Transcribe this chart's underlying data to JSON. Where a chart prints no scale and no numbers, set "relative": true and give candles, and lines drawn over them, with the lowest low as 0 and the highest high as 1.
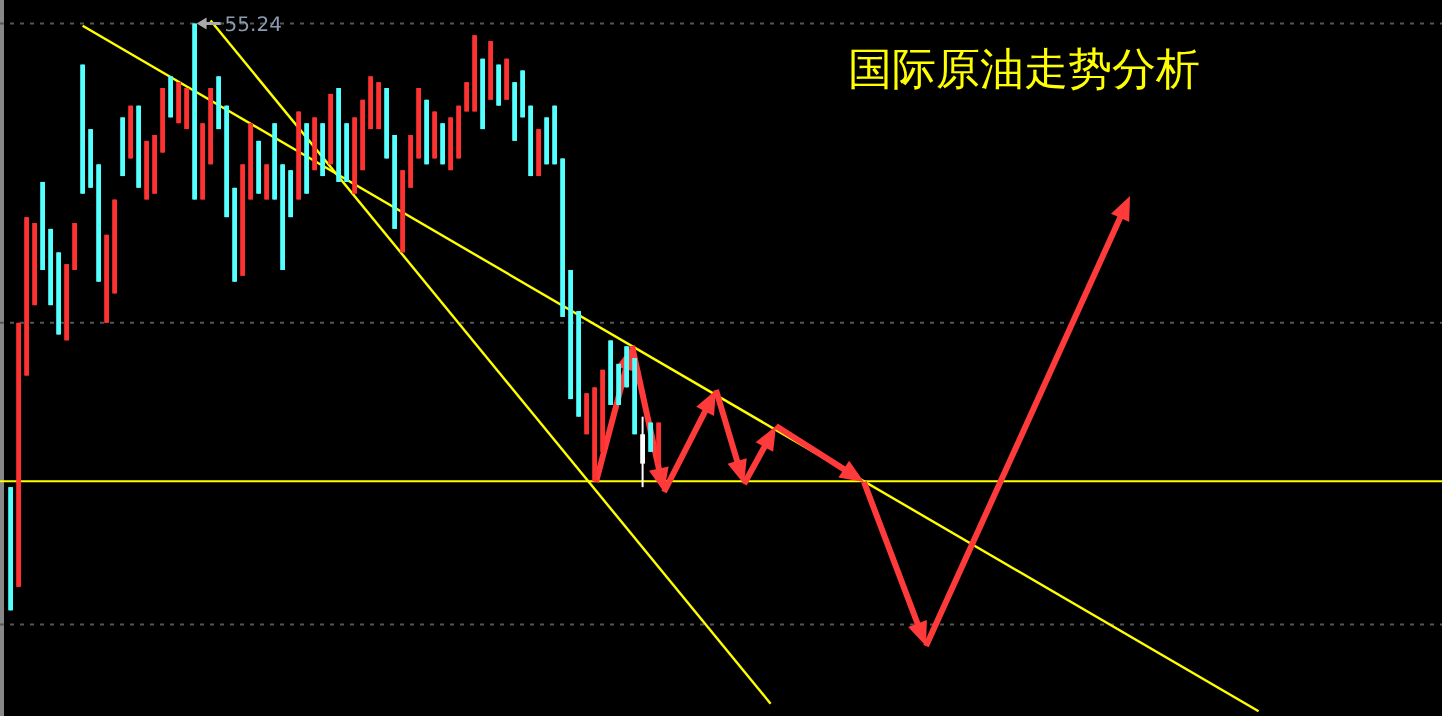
{
  "chart_data": {
    "type": "candlestick",
    "title": "国际原油走势分析",
    "relative": true,
    "categories": [
      null,
      null,
      null,
      null,
      null,
      null,
      null,
      null,
      null,
      null,
      null,
      null,
      null,
      null,
      null,
      null,
      null,
      null,
      null,
      null,
      null,
      null,
      null,
      null,
      null,
      null,
      null,
      null,
      null,
      null,
      null,
      null,
      null,
      null,
      null,
      null,
      null,
      null,
      null,
      null,
      null,
      null,
      null,
      null,
      null,
      null,
      null,
      null,
      null,
      null,
      null,
      null,
      null,
      null,
      null,
      null,
      null,
      null,
      null,
      null,
      null,
      null,
      null,
      null,
      null,
      null,
      null,
      null,
      null,
      null,
      null,
      null,
      null,
      null,
      null,
      null,
      null,
      null,
      null,
      null,
      null,
      null,
      null,
      null,
      null,
      null,
      null,
      null,
      null,
      null,
      null,
      null,
      null,
      null,
      null,
      null,
      null,
      null,
      null,
      null,
      null,
      null,
      null,
      null,
      null,
      null,
      null,
      null,
      null,
      null,
      null,
      null,
      null,
      null,
      null,
      null,
      null,
      null,
      null,
      null,
      null,
      null,
      null,
      null,
      null,
      null,
      null,
      null,
      null,
      null,
      null,
      null,
      null,
      null,
      null,
      null,
      null,
      null,
      null,
      null,
      null,
      null,
      null,
      null,
      null,
      null,
      null,
      null,
      null,
      null,
      null,
      null,
      null,
      null,
      null,
      null,
      null,
      null,
      null,
      null,
      null,
      null,
      null,
      null,
      null,
      null,
      null,
      null,
      null,
      null,
      null,
      null,
      null,
      null,
      null,
      null,
      null,
      null,
      null,
      null
    ],
    "ohlc": [
      [
        0.21,
        0.21,
        0,
        0
      ],
      [
        0.04,
        0.49,
        0.04,
        0.49
      ],
      [
        0.4,
        0.67,
        0.4,
        0.67
      ],
      [
        0.52,
        0.66,
        0.52,
        0.66
      ],
      [
        0.73,
        0.73,
        0.58,
        0.58
      ],
      [
        0.65,
        0.65,
        0.52,
        0.52
      ],
      [
        0.61,
        0.61,
        0.47,
        0.47
      ],
      [
        0.46,
        0.59,
        0.46,
        0.59
      ],
      [
        0.58,
        0.66,
        0.58,
        0.66
      ],
      [
        0.93,
        0.93,
        0.71,
        0.71
      ],
      [
        0.82,
        0.82,
        0.72,
        0.72
      ],
      [
        0.76,
        0.76,
        0.56,
        0.56
      ],
      [
        0.49,
        0.64,
        0.49,
        0.64
      ],
      [
        0.54,
        0.7,
        0.54,
        0.7
      ],
      [
        0.84,
        0.84,
        0.74,
        0.74
      ],
      [
        0.77,
        0.86,
        0.77,
        0.86
      ],
      [
        0.86,
        0.86,
        0.72,
        0.72
      ],
      [
        0.7,
        0.8,
        0.7,
        0.8
      ],
      [
        0.71,
        0.81,
        0.71,
        0.81
      ],
      [
        0.78,
        0.89,
        0.78,
        0.89
      ],
      [
        0.91,
        0.91,
        0.84,
        0.84
      ],
      [
        0.83,
        0.9,
        0.83,
        0.9
      ],
      [
        0.82,
        0.89,
        0.82,
        0.89
      ],
      [
        1,
        1,
        0.7,
        0.7
      ],
      [
        0.7,
        0.83,
        0.7,
        0.83
      ],
      [
        0.76,
        0.89,
        0.76,
        0.89
      ],
      [
        0.91,
        0.91,
        0.82,
        0.82
      ],
      [
        0.86,
        0.86,
        0.67,
        0.67
      ],
      [
        0.72,
        0.72,
        0.56,
        0.56
      ],
      [
        0.57,
        0.76,
        0.57,
        0.76
      ],
      [
        0.7,
        0.83,
        0.7,
        0.83
      ],
      [
        0.8,
        0.8,
        0.71,
        0.71
      ],
      [
        0.7,
        0.76,
        0.7,
        0.76
      ],
      [
        0.83,
        0.83,
        0.7,
        0.7
      ],
      [
        0.76,
        0.76,
        0.58,
        0.58
      ],
      [
        0.75,
        0.75,
        0.67,
        0.67
      ],
      [
        0.7,
        0.85,
        0.7,
        0.85
      ],
      [
        0.83,
        0.83,
        0.71,
        0.71
      ],
      [
        0.75,
        0.84,
        0.75,
        0.84
      ],
      [
        0.83,
        0.83,
        0.74,
        0.74
      ],
      [
        0.76,
        0.88,
        0.76,
        0.88
      ],
      [
        0.89,
        0.89,
        0.73,
        0.73
      ],
      [
        0.83,
        0.83,
        0.73,
        0.73
      ],
      [
        0.71,
        0.84,
        0.71,
        0.84
      ],
      [
        0.75,
        0.87,
        0.75,
        0.87
      ],
      [
        0.82,
        0.91,
        0.82,
        0.91
      ],
      [
        0.82,
        0.9,
        0.82,
        0.9
      ],
      [
        0.89,
        0.89,
        0.77,
        0.77
      ],
      [
        0.81,
        0.81,
        0.65,
        0.65
      ],
      [
        0.61,
        0.75,
        0.61,
        0.75
      ],
      [
        0.72,
        0.81,
        0.72,
        0.81
      ],
      [
        0.77,
        0.89,
        0.77,
        0.89
      ],
      [
        0.87,
        0.87,
        0.76,
        0.76
      ],
      [
        0.77,
        0.85,
        0.77,
        0.85
      ],
      [
        0.83,
        0.83,
        0.76,
        0.76
      ],
      [
        0.75,
        0.84,
        0.75,
        0.84
      ],
      [
        0.77,
        0.86,
        0.77,
        0.86
      ],
      [
        0.85,
        0.9,
        0.85,
        0.9
      ],
      [
        0.85,
        0.98,
        0.85,
        0.98
      ],
      [
        0.94,
        0.94,
        0.82,
        0.82
      ],
      [
        0.87,
        0.97,
        0.87,
        0.97
      ],
      [
        0.93,
        0.93,
        0.86,
        0.86
      ],
      [
        0.87,
        0.94,
        0.87,
        0.94
      ],
      [
        0.9,
        0.9,
        0.8,
        0.8
      ],
      [
        0.92,
        0.92,
        0.84,
        0.84
      ],
      [
        0.86,
        0.86,
        0.74,
        0.74
      ],
      [
        0.74,
        0.82,
        0.74,
        0.82
      ],
      [
        0.84,
        0.84,
        0.76,
        0.76
      ],
      [
        0.86,
        0.86,
        0.76,
        0.76
      ],
      [
        0.77,
        0.77,
        0.5,
        0.5
      ],
      [
        0.58,
        0.58,
        0.36,
        0.36
      ],
      [
        0.51,
        0.51,
        0.33,
        0.33
      ],
      [
        0.3,
        0.37,
        0.3,
        0.37
      ],
      [
        0.22,
        0.38,
        0.22,
        0.38
      ],
      [
        0.27,
        0.41,
        0.27,
        0.41
      ],
      [
        0.46,
        0.46,
        0.35,
        0.35
      ],
      [
        0.42,
        0.42,
        0.35,
        0.35
      ],
      [
        0.45,
        0.45,
        0.38,
        0.38
      ],
      [
        0.43,
        0.43,
        0.3,
        0.3
      ],
      [
        0.3,
        0.33,
        0.21,
        0.25
      ],
      [
        0.32,
        0.32,
        0.27,
        0.27
      ],
      [
        0.25,
        0.32,
        0.25,
        0.32
      ],
      null,
      null,
      null,
      null,
      null,
      null,
      null,
      null,
      null,
      null,
      null,
      null,
      null,
      null,
      null,
      null,
      null,
      null,
      null,
      null,
      null,
      null,
      null,
      null,
      null,
      null,
      null,
      null,
      null,
      null,
      null,
      null,
      null,
      null,
      null,
      null,
      null,
      null,
      null,
      null,
      null,
      null,
      null,
      null,
      null,
      null,
      null,
      null,
      null,
      null,
      null,
      null,
      null,
      null,
      null,
      null,
      null,
      null,
      null,
      null,
      null,
      null,
      null,
      null,
      null,
      null,
      null,
      null,
      null,
      null,
      null,
      null,
      null,
      null,
      null,
      null,
      null,
      null,
      null,
      null,
      null,
      null,
      null,
      null,
      null,
      null,
      null,
      null,
      null,
      null,
      null,
      null,
      null,
      null,
      null,
      null,
      null,
      null
    ],
    "colors": [
      "#54ffff",
      "#ff3232",
      "#ff3232",
      "#ff3232",
      "#54ffff",
      "#54ffff",
      "#54ffff",
      "#ff3232",
      "#ff3232",
      "#54ffff",
      "#54ffff",
      "#54ffff",
      "#ff3232",
      "#ff3232",
      "#54ffff",
      "#ff3232",
      "#54ffff",
      "#ff3232",
      "#ff3232",
      "#ff3232",
      "#54ffff",
      "#ff3232",
      "#ff3232",
      "#54ffff",
      "#ff3232",
      "#ff3232",
      "#54ffff",
      "#54ffff",
      "#54ffff",
      "#ff3232",
      "#ff3232",
      "#54ffff",
      "#ff3232",
      "#54ffff",
      "#54ffff",
      "#54ffff",
      "#ff3232",
      "#54ffff",
      "#ff3232",
      "#54ffff",
      "#ff3232",
      "#54ffff",
      "#54ffff",
      "#ff3232",
      "#ff3232",
      "#ff3232",
      "#ff3232",
      "#54ffff",
      "#54ffff",
      "#ff3232",
      "#ff3232",
      "#ff3232",
      "#54ffff",
      "#ff3232",
      "#54ffff",
      "#ff3232",
      "#ff3232",
      "#ff3232",
      "#ff3232",
      "#54ffff",
      "#ff3232",
      "#54ffff",
      "#ff3232",
      "#54ffff",
      "#54ffff",
      "#54ffff",
      "#ff3232",
      "#54ffff",
      "#54ffff",
      "#54ffff",
      "#54ffff",
      "#54ffff",
      "#ff3232",
      "#ff3232",
      "#ff3232",
      "#54ffff",
      "#54ffff",
      "#54ffff",
      "#54ffff",
      "#ffffff",
      "#54ffff",
      "#ff3232",
      null,
      null,
      null,
      null,
      null,
      null,
      null,
      null,
      null,
      null,
      null,
      null,
      null,
      null,
      null,
      null,
      null,
      null,
      null,
      null,
      null,
      null,
      null,
      null,
      null,
      null,
      null,
      null,
      null,
      null,
      null,
      null,
      null,
      null,
      null,
      null,
      null,
      null,
      null,
      null,
      null,
      null,
      null,
      null,
      null,
      null,
      null,
      null,
      null,
      null,
      null,
      null,
      null,
      null,
      null,
      null,
      null,
      null,
      null,
      null,
      null,
      null,
      null,
      null,
      null,
      null,
      null,
      null,
      null,
      null,
      null,
      null,
      null,
      null,
      null,
      null,
      null,
      null,
      null,
      null,
      null,
      null,
      null,
      null,
      null,
      null,
      null,
      null,
      null,
      null,
      null,
      null,
      null,
      null,
      null,
      null,
      null,
      null
    ],
    "series": [
      {
        "type": "line",
        "color": "#ffff00",
        "values": [
          null,
          null,
          null,
          null,
          null,
          null,
          null,
          null,
          null,
          null,
          null,
          null,
          null,
          null,
          null,
          null,
          null,
          null,
          null,
          null,
          null,
          null,
          null,
          null,
          null,
          1.005,
          null,
          null,
          null,
          null,
          null,
          null,
          null,
          null,
          null,
          null,
          null,
          null,
          null,
          null,
          null,
          null,
          null,
          null,
          null,
          null,
          null,
          null,
          null,
          null,
          null,
          null,
          null,
          null,
          null,
          null,
          null,
          null,
          null,
          null,
          null,
          null,
          null,
          null,
          null,
          null,
          null,
          null,
          null,
          null,
          null,
          null,
          null,
          null,
          null,
          null,
          null,
          null,
          null,
          null,
          null,
          null,
          null,
          null,
          null,
          null,
          null,
          null,
          null,
          null,
          null,
          null,
          null,
          null,
          null,
          -0.159,
          null,
          null,
          null,
          null,
          null,
          null,
          null,
          null,
          null,
          null,
          null,
          null,
          null,
          null,
          null,
          null,
          null,
          null,
          null,
          null,
          null,
          null,
          null,
          null,
          null,
          null,
          null,
          null,
          null,
          null,
          null,
          null,
          null,
          null,
          null,
          null,
          null,
          null,
          null,
          null,
          null,
          null,
          null,
          null,
          null,
          null,
          null,
          null,
          null,
          null,
          null,
          null,
          null,
          null,
          null,
          null,
          null,
          null,
          null,
          null,
          null,
          null,
          null,
          null,
          null,
          null,
          null,
          null,
          null,
          null,
          null,
          null,
          null,
          null,
          null,
          null,
          null,
          null,
          null,
          null,
          null,
          null,
          null,
          null
        ]
      },
      {
        "type": "line",
        "color": "#ffff00",
        "values": [
          null,
          null,
          null,
          null,
          null,
          null,
          null,
          null,
          null,
          0.996,
          null,
          null,
          null,
          null,
          null,
          null,
          null,
          null,
          null,
          null,
          null,
          null,
          null,
          null,
          null,
          null,
          null,
          null,
          null,
          null,
          null,
          null,
          null,
          null,
          null,
          null,
          null,
          null,
          null,
          null,
          null,
          null,
          null,
          null,
          null,
          null,
          null,
          null,
          null,
          null,
          null,
          null,
          null,
          null,
          null,
          null,
          null,
          null,
          null,
          null,
          null,
          null,
          null,
          null,
          null,
          null,
          null,
          null,
          null,
          null,
          null,
          null,
          null,
          null,
          null,
          null,
          null,
          null,
          null,
          null,
          null,
          null,
          null,
          null,
          null,
          null,
          null,
          null,
          null,
          null,
          null,
          null,
          null,
          null,
          null,
          null,
          null,
          null,
          null,
          null,
          null,
          null,
          null,
          null,
          null,
          null,
          null,
          null,
          null,
          null,
          null,
          null,
          null,
          null,
          null,
          null,
          null,
          null,
          null,
          null,
          null,
          null,
          null,
          null,
          null,
          null,
          null,
          null,
          null,
          null,
          null,
          null,
          null,
          null,
          null,
          null,
          null,
          null,
          null,
          null,
          null,
          null,
          null,
          null,
          null,
          null,
          null,
          null,
          null,
          null,
          null,
          null,
          null,
          null,
          null,
          null,
          -0.172,
          null,
          null,
          null,
          null,
          null,
          null,
          null,
          null,
          null,
          null,
          null,
          null,
          null,
          null,
          null,
          null,
          null,
          null,
          null,
          null,
          null,
          null,
          null
        ]
      }
    ],
    "ref_lines": [
      {
        "axis": "y",
        "value": 0.22,
        "color": "#ffff00",
        "line_style": "solid"
      },
      {
        "axis": "y",
        "value": 1,
        "color": "#555555",
        "line_style": "dotted"
      },
      {
        "axis": "y",
        "value": 0.49,
        "color": "#555555",
        "line_style": "dotted"
      },
      {
        "axis": "y",
        "value": -0.024,
        "color": "#555555",
        "line_style": "dotted"
      }
    ],
    "annotations": [
      {
        "text": "55.24",
        "y": 1
      }
    ]
  }
}
